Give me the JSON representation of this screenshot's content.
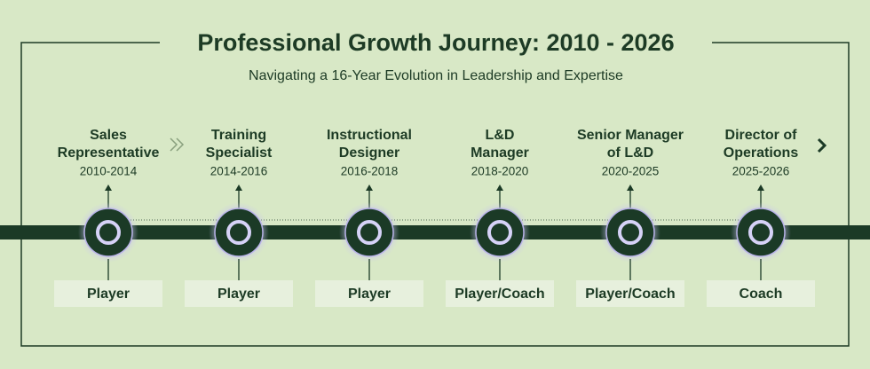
{
  "header": {
    "title": "Professional Growth Journey: 2010 - 2026",
    "subtitle": "Navigating a 16-Year Evolution in Leadership and Expertise"
  },
  "stages": [
    {
      "title": [
        "Sales",
        "Representative"
      ],
      "years": "2010-2014",
      "role": "Player"
    },
    {
      "title": [
        "Training",
        "Specialist"
      ],
      "years": "2014-2016",
      "role": "Player"
    },
    {
      "title": [
        "Instructional",
        "Designer"
      ],
      "years": "2016-2018",
      "role": "Player"
    },
    {
      "title": [
        "L&D",
        "Manager"
      ],
      "years": "2018-2020",
      "role": "Player/Coach"
    },
    {
      "title": [
        "Senior Manager",
        "of L&D"
      ],
      "years": "2020-2025",
      "role": "Player/Coach"
    },
    {
      "title": [
        "Director of",
        "Operations"
      ],
      "years": "2025-2026",
      "role": "Coach"
    }
  ]
}
